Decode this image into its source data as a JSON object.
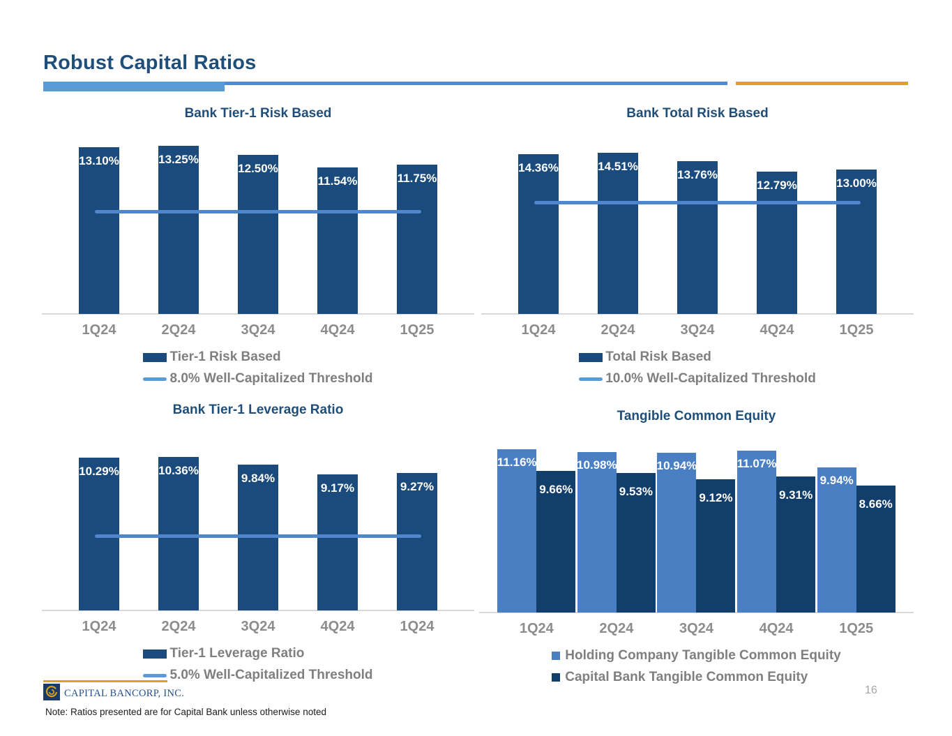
{
  "slide": {
    "title": "Robust Capital Ratios",
    "page_number": "16",
    "footnote": "Note: Ratios presented are for Capital Bank unless otherwise noted",
    "logo_text": "CAPITAL BANCORP, INC."
  },
  "colors": {
    "title_blue": "#1F4E79",
    "bar_navy": "#1A4B7C",
    "bar_navy_dark": "#123E6B",
    "bar_light_blue": "#4A7FC4",
    "threshold_line_blue": "#4F86CC",
    "accent_bar_blue": "#5B9BD5",
    "accent_gold": "#D9A521",
    "axis_gray": "#8C8C8C",
    "legend_gray": "#7F7F7F"
  },
  "chart_data": [
    {
      "type": "bar",
      "title": "Bank Tier-1 Risk Based",
      "categories": [
        "1Q24",
        "2Q24",
        "3Q24",
        "4Q24",
        "1Q25"
      ],
      "series": [
        {
          "name": "Tier-1 Risk Based",
          "color": "#1A4B7C",
          "values": [
            13.1,
            13.25,
            12.5,
            11.54,
            11.75
          ],
          "labels": [
            "13.10%",
            "13.25%",
            "12.50%",
            "11.54%",
            "11.75%"
          ]
        }
      ],
      "threshold": {
        "label": "8.0% Well-Capitalized Threshold",
        "value": 8.0
      },
      "ylim": [
        0,
        14
      ],
      "grid": false,
      "legend_position": "bottom",
      "legend_swatch": "rect"
    },
    {
      "type": "bar",
      "title": "Bank Total Risk Based",
      "categories": [
        "1Q24",
        "2Q24",
        "3Q24",
        "4Q24",
        "1Q25"
      ],
      "series": [
        {
          "name": "Total Risk Based",
          "color": "#1A4B7C",
          "values": [
            14.36,
            14.51,
            13.76,
            12.79,
            13.0
          ],
          "labels": [
            "14.36%",
            "14.51%",
            "13.76%",
            "12.79%",
            "13.00%"
          ]
        }
      ],
      "threshold": {
        "label": "10.0% Well-Capitalized Threshold",
        "value": 10.0
      },
      "ylim": [
        0,
        16
      ],
      "grid": false,
      "legend_position": "bottom",
      "legend_swatch": "rect"
    },
    {
      "type": "bar",
      "title": "Bank Tier-1 Leverage Ratio",
      "categories": [
        "1Q24",
        "2Q24",
        "3Q24",
        "4Q24",
        "1Q24"
      ],
      "series": [
        {
          "name": "Tier-1 Leverage Ratio",
          "color": "#1A4B7C",
          "values": [
            10.29,
            10.36,
            9.84,
            9.17,
            9.27
          ],
          "labels": [
            "10.29%",
            "10.36%",
            "9.84%",
            "9.17%",
            "9.27%"
          ]
        }
      ],
      "threshold": {
        "label": "5.0% Well-Capitalized Threshold",
        "value": 5.0
      },
      "ylim": [
        0,
        12
      ],
      "grid": false,
      "legend_position": "bottom",
      "legend_swatch": "rect"
    },
    {
      "type": "bar",
      "title": "Tangible Common Equity",
      "categories": [
        "1Q24",
        "2Q24",
        "3Q24",
        "4Q24",
        "1Q25"
      ],
      "series": [
        {
          "name": "Holding Company Tangible Common Equity",
          "color": "#4A7FC4",
          "values": [
            11.16,
            10.98,
            10.94,
            11.07,
            9.94
          ],
          "labels": [
            "11.16%",
            "10.98%",
            "10.94%",
            "11.07%",
            "9.94%"
          ]
        },
        {
          "name": "Capital Bank Tangible Common Equity",
          "color": "#123E6B",
          "values": [
            9.66,
            9.53,
            9.12,
            9.31,
            8.66
          ],
          "labels": [
            "9.66%",
            "9.53%",
            "9.12%",
            "9.31%",
            "8.66%"
          ]
        }
      ],
      "ylim": [
        0,
        12.3
      ],
      "grid": false,
      "legend_position": "bottom",
      "legend_swatch": "square"
    }
  ]
}
